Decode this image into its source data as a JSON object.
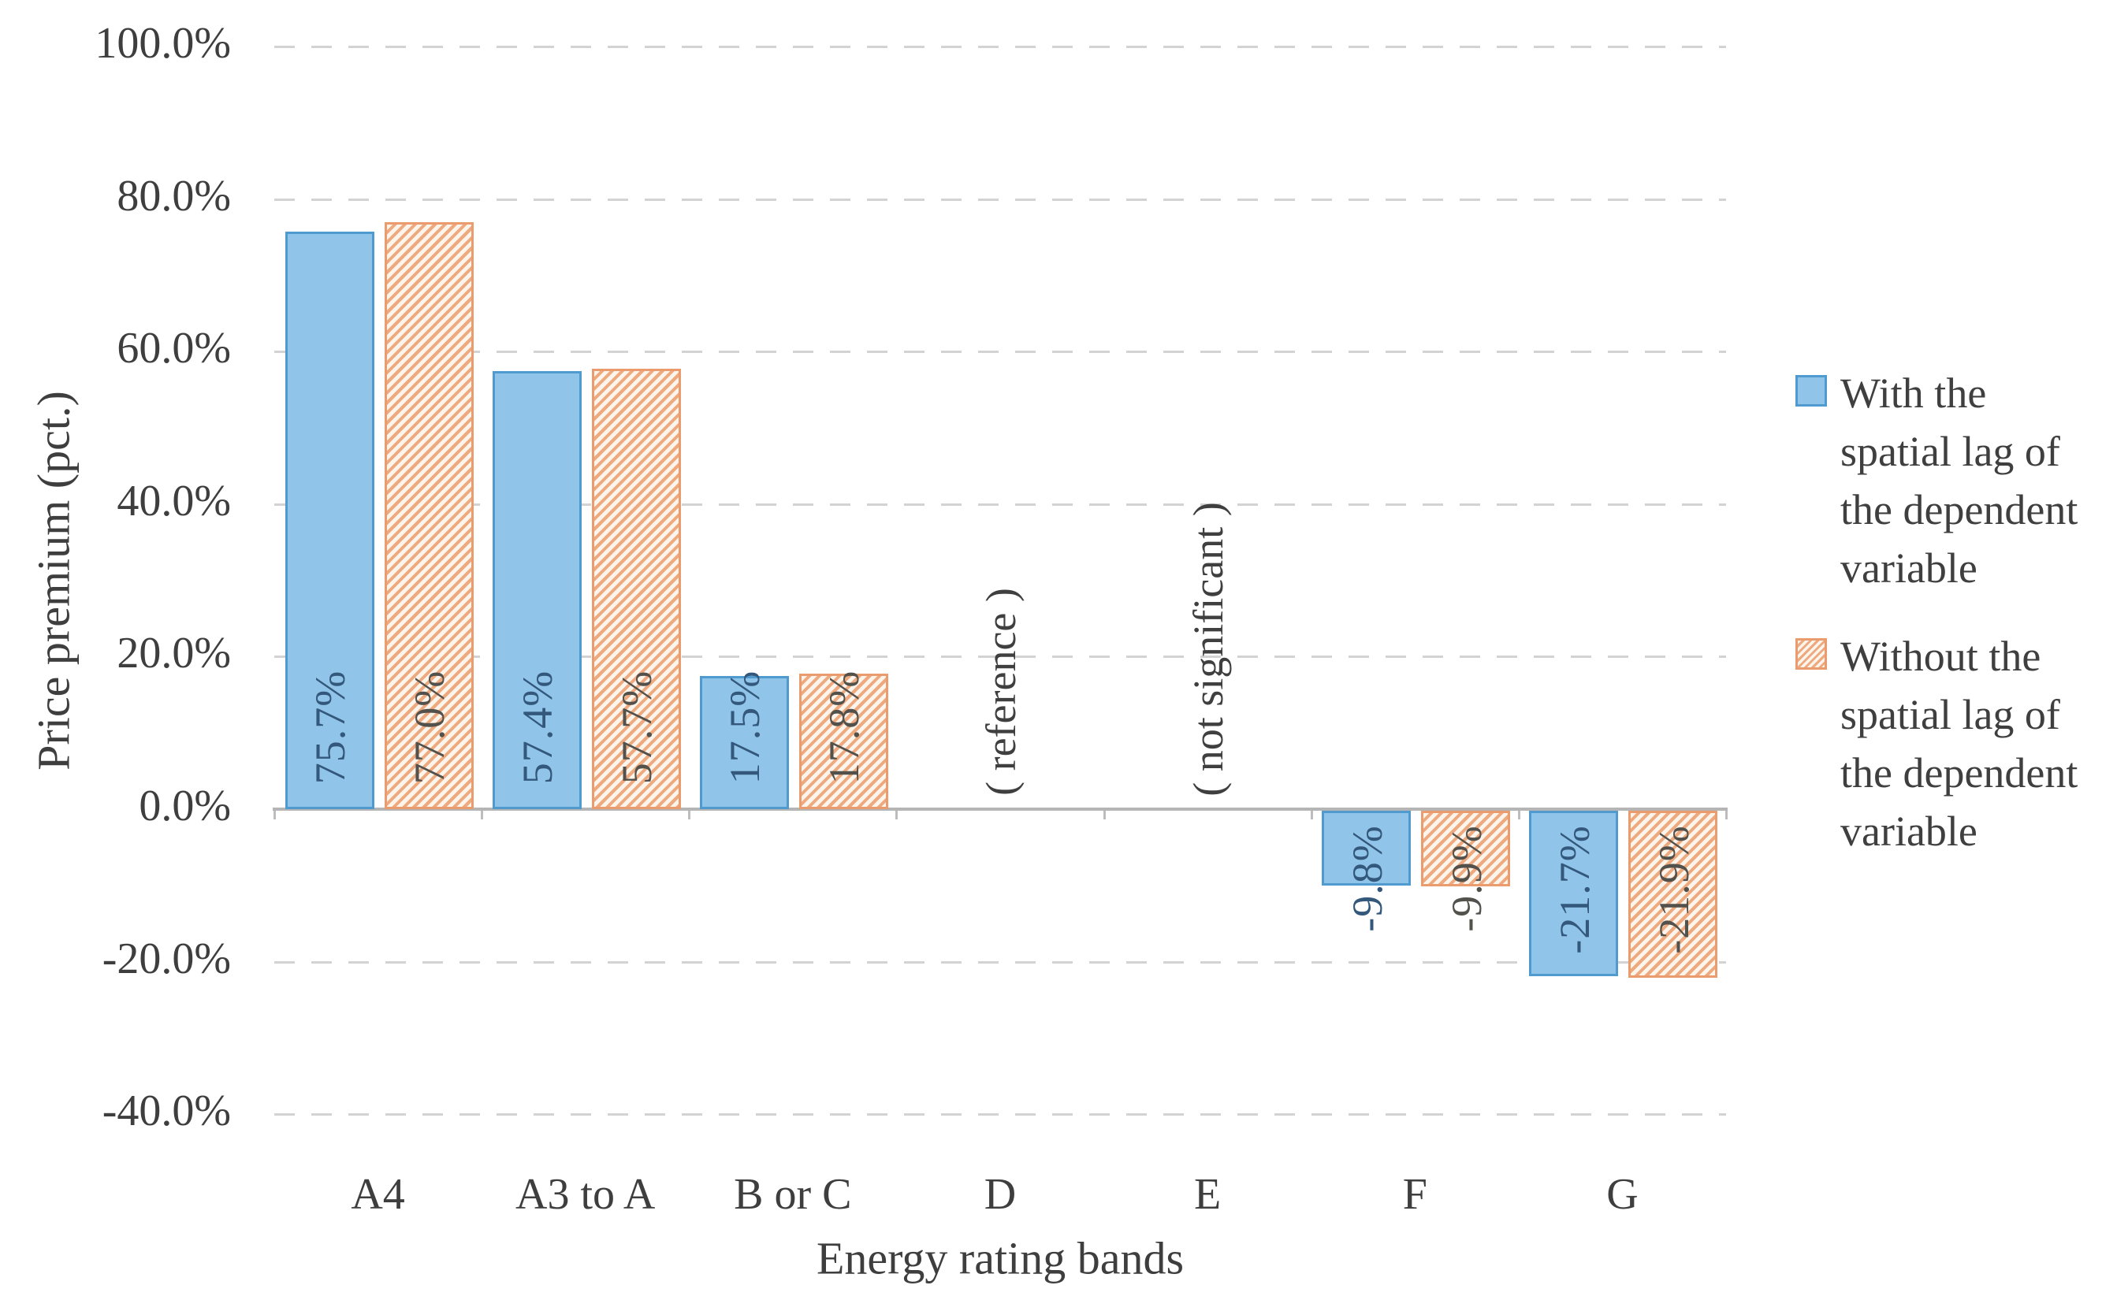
{
  "chart_data": {
    "type": "bar",
    "title": "",
    "xlabel": "Energy rating bands",
    "ylabel": "Price premium (pct.)",
    "ylim": [
      -40,
      100
    ],
    "ytick_step": 20,
    "yticks": [
      {
        "value": 100,
        "label": "100.0%"
      },
      {
        "value": 80,
        "label": "80.0%"
      },
      {
        "value": 60,
        "label": "60.0%"
      },
      {
        "value": 40,
        "label": "40.0%"
      },
      {
        "value": 20,
        "label": "20.0%"
      },
      {
        "value": 0,
        "label": "0.0%"
      },
      {
        "value": -20,
        "label": "-20.0%"
      },
      {
        "value": -40,
        "label": "-40.0%"
      }
    ],
    "grid": "horizontal-dashed, zero-line solid",
    "legend_position": "right",
    "categories": [
      "A4",
      "A3 to A",
      "B or C",
      "D",
      "E",
      "F",
      "G"
    ],
    "series": [
      {
        "name": "With the spatial lag of the dependent variable",
        "pattern": "solid",
        "fill_color": "#90C4E9",
        "border_color": "#4F9ACF",
        "label_color": "#33587B",
        "values": [
          75.7,
          57.4,
          17.5,
          null,
          null,
          -9.8,
          -21.7
        ],
        "data_labels": [
          "75.7%",
          "57.4%",
          "17.5%",
          "",
          "",
          "-9.8%",
          "-21.7%"
        ]
      },
      {
        "name": "Without the spatial lag of the dependent variable",
        "pattern": "diagonal-hatch",
        "fill_color": "#FDF4EC",
        "stripe_color": "#EFA97E",
        "border_color": "#EA9C6F",
        "label_color": "#53514B",
        "values": [
          77.0,
          57.7,
          17.8,
          null,
          null,
          -9.9,
          -21.9
        ],
        "data_labels": [
          "77.0%",
          "57.7%",
          "17.8%",
          "",
          "",
          "-9.9%",
          "-21.9%"
        ]
      }
    ],
    "annotations": [
      {
        "category": "D",
        "text": "( reference )"
      },
      {
        "category": "E",
        "text": "( not significant )"
      }
    ],
    "gridline_color": "#D3D3D3",
    "axis_line_color": "#B5B5B5",
    "axis_text_color": "#3E3E3E"
  }
}
